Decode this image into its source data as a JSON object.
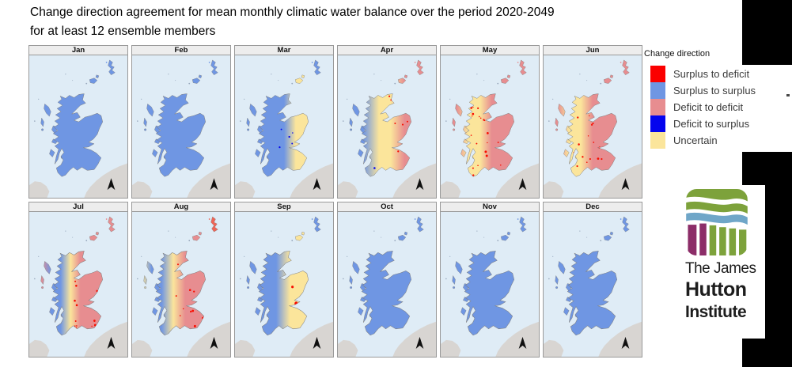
{
  "title": {
    "line1": "Change direction agreement for mean monthly climatic water balance over the period 2020-2049",
    "line2": "for at least 12 ensemble members"
  },
  "legend": {
    "title": "Change direction",
    "items": [
      {
        "label": "Surplus to deficit",
        "color": "#fb0000"
      },
      {
        "label": "Surplus to surplus",
        "color": "#6f96e3"
      },
      {
        "label": "Deficit to deficit",
        "color": "#e78d90"
      },
      {
        "label": "Deficit to surplus",
        "color": "#0404ee"
      },
      {
        "label": "Uncertain",
        "color": "#fbe59b"
      }
    ]
  },
  "palette": {
    "sea": "#dfecf6",
    "neighbor_land": "#d8d5d2",
    "coast": "#7d7d7d",
    "surplus_to_deficit": "#fb0000",
    "surplus_to_surplus": "#6f96e3",
    "deficit_to_deficit": "#e78d90",
    "deficit_to_surplus": "#0404ee",
    "uncertain": "#fbe59b"
  },
  "map_notes": {
    "region": "Scotland",
    "north_arrow": true,
    "rows": 2,
    "columns": 6
  },
  "months": [
    {
      "label": "Jan",
      "summary": "entirely surplus to surplus",
      "shetland": "#6f96e3",
      "zones": [
        [
          0,
          "#6f96e3"
        ],
        [
          1,
          "#6f96e3"
        ]
      ],
      "speckles": []
    },
    {
      "label": "Feb",
      "summary": "entirely surplus to surplus",
      "shetland": "#6f96e3",
      "zones": [
        [
          0,
          "#6f96e3"
        ],
        [
          1,
          "#6f96e3"
        ]
      ],
      "speckles": []
    },
    {
      "label": "Mar",
      "summary": "mostly surplus to surplus, uncertain patches in east and south-east, few deficit-to-surplus dots",
      "shetland": "#6f96e3",
      "zones": [
        [
          0,
          "#6f96e3"
        ],
        [
          0.5,
          "#6f96e3"
        ],
        [
          0.62,
          "#fbe59b"
        ],
        [
          0.78,
          "#fbe59b"
        ],
        [
          0.9,
          "#6f96e3"
        ]
      ],
      "speckles": [
        {
          "color": "#0404ee",
          "count": 5,
          "radius": 0.9,
          "x": [
            0.45,
            0.62
          ],
          "y": [
            0.5,
            0.68
          ]
        }
      ]
    },
    {
      "label": "Apr",
      "summary": "surplus to surplus in west, uncertain band in centre, deficit to deficit in east with surplus-to-deficit dots",
      "shetland": "#e78d90",
      "zones": [
        [
          0,
          "#6f96e3"
        ],
        [
          0.26,
          "#6f96e3"
        ],
        [
          0.42,
          "#fbe59b"
        ],
        [
          0.54,
          "#fbe59b"
        ],
        [
          0.68,
          "#e78d90"
        ],
        [
          1,
          "#e78d90"
        ]
      ],
      "speckles": [
        {
          "color": "#f80d00",
          "count": 22,
          "radius": 1.0,
          "x": [
            0.5,
            0.95
          ],
          "y": [
            0.28,
            0.78
          ]
        },
        {
          "color": "#0404ee",
          "count": 7,
          "radius": 1.0,
          "x": [
            0.35,
            0.58
          ],
          "y": [
            0.76,
            0.95
          ]
        }
      ]
    },
    {
      "label": "May",
      "summary": "deficit to deficit almost everywhere, uncertain band along west highlands, many surplus-to-deficit dots in centre",
      "shetland": "#e78d90",
      "zones": [
        [
          0,
          "#e78d90"
        ],
        [
          0.16,
          "#e78d90"
        ],
        [
          0.28,
          "#fbe59b"
        ],
        [
          0.4,
          "#fbe59b"
        ],
        [
          0.52,
          "#e78d90"
        ],
        [
          1,
          "#e78d90"
        ]
      ],
      "speckles": [
        {
          "color": "#f80d00",
          "count": 26,
          "radius": 1.1,
          "x": [
            0.3,
            0.68
          ],
          "y": [
            0.35,
            0.85
          ]
        }
      ]
    },
    {
      "label": "Jun",
      "summary": "deficit to deficit with uncertain band along west highlands and scattered surplus-to-deficit dots",
      "shetland": "#e78d90",
      "zones": [
        [
          0,
          "#e78d90"
        ],
        [
          0.14,
          "#e78d90"
        ],
        [
          0.26,
          "#fbe59b"
        ],
        [
          0.38,
          "#fbe59b"
        ],
        [
          0.5,
          "#e78d90"
        ],
        [
          1,
          "#e78d90"
        ]
      ],
      "speckles": [
        {
          "color": "#f80d00",
          "count": 16,
          "radius": 1.0,
          "x": [
            0.3,
            0.6
          ],
          "y": [
            0.4,
            0.8
          ]
        }
      ]
    },
    {
      "label": "Jul",
      "summary": "deficit to deficit east, surplus-to-surplus and uncertain band in west highlands, surplus-to-deficit dots",
      "shetland": "#e78d90",
      "zones": [
        [
          0,
          "#e78d90"
        ],
        [
          0.12,
          "#e78d90"
        ],
        [
          0.22,
          "#6f96e3"
        ],
        [
          0.32,
          "#6f96e3"
        ],
        [
          0.42,
          "#fbe59b"
        ],
        [
          0.52,
          "#e78d90"
        ],
        [
          1,
          "#e78d90"
        ]
      ],
      "speckles": [
        {
          "color": "#f80d00",
          "count": 20,
          "radius": 1.0,
          "x": [
            0.45,
            0.8
          ],
          "y": [
            0.45,
            0.92
          ]
        }
      ]
    },
    {
      "label": "Aug",
      "summary": "deficit to deficit east with dense surplus-to-deficit dots, blue and uncertain bands along west highlands",
      "shetland": "#ef6456",
      "zones": [
        [
          0,
          "#e78d90"
        ],
        [
          0.1,
          "#fbe59b"
        ],
        [
          0.2,
          "#6f96e3"
        ],
        [
          0.3,
          "#6f96e3"
        ],
        [
          0.42,
          "#fbe59b"
        ],
        [
          0.54,
          "#e78d90"
        ],
        [
          1,
          "#e78d90"
        ]
      ],
      "speckles": [
        {
          "color": "#f80d00",
          "count": 40,
          "radius": 1.1,
          "x": [
            0.44,
            0.98
          ],
          "y": [
            0.25,
            0.95
          ]
        },
        {
          "color": "#f80d00",
          "count": 6,
          "radius": 0.9,
          "x": [
            0.02,
            0.16
          ],
          "y": [
            0.3,
            0.62
          ]
        }
      ]
    },
    {
      "label": "Sep",
      "summary": "surplus to surplus west half, uncertain east half with surplus-to-deficit patches in east and south-east",
      "shetland": "#6f96e3",
      "zones": [
        [
          0,
          "#6f96e3"
        ],
        [
          0.42,
          "#6f96e3"
        ],
        [
          0.56,
          "#fbe59b"
        ],
        [
          1,
          "#fbe59b"
        ]
      ],
      "speckles": [
        {
          "color": "#f80d00",
          "count": 18,
          "radius": 1.6,
          "x": [
            0.58,
            0.92
          ],
          "y": [
            0.45,
            0.88
          ]
        }
      ]
    },
    {
      "label": "Oct",
      "summary": "entirely surplus to surplus",
      "shetland": "#6f96e3",
      "zones": [
        [
          0,
          "#6f96e3"
        ],
        [
          1,
          "#6f96e3"
        ]
      ],
      "speckles": []
    },
    {
      "label": "Nov",
      "summary": "entirely surplus to surplus",
      "shetland": "#6f96e3",
      "zones": [
        [
          0,
          "#6f96e3"
        ],
        [
          1,
          "#6f96e3"
        ]
      ],
      "speckles": []
    },
    {
      "label": "Dec",
      "summary": "entirely surplus to surplus",
      "shetland": "#6f96e3",
      "zones": [
        [
          0,
          "#6f96e3"
        ],
        [
          1,
          "#6f96e3"
        ]
      ],
      "speckles": []
    }
  ],
  "logo": {
    "line1": "The James",
    "line2": "Hutton",
    "line3": "Institute"
  }
}
